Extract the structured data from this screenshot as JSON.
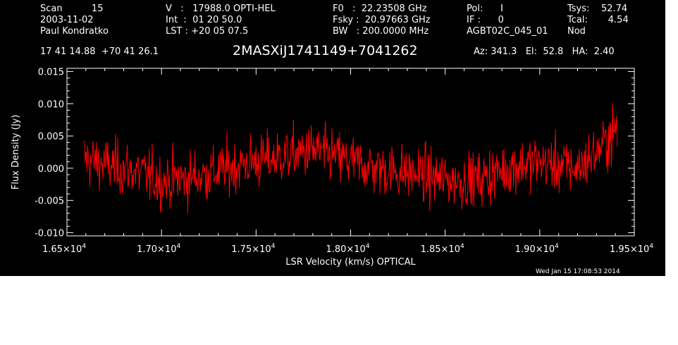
{
  "header": {
    "col1": [
      "Scan          15",
      "2003-11-02",
      "Paul Kondratko"
    ],
    "col2": [
      "V   :   17988.0 OPTI-HEL",
      "Int  :  01 20 50.0",
      "LST : +20 05 07.5"
    ],
    "col3": [
      "F0   :  22.23508 GHz",
      "Fsky :  20.97663 GHz",
      "BW   : 200.0000 MHz"
    ],
    "col4": [
      "Pol:      I",
      "IF :      0",
      "AGBT02C_045_01"
    ],
    "col5": [
      "Tsys:    52.74",
      "Tcal:       4.54",
      "Nod"
    ],
    "coords": "17 41 14.88  +70 41 26.1",
    "source": "2MASXiJ1741149+7041262",
    "azel": "Az: 341.3   El:  52.8   HA:  2.40",
    "timestamp": "Wed Jan 15 17:08:53 2014"
  },
  "colors": {
    "background": "#000000",
    "axes": "#ffffff",
    "trace": "#ff0000"
  },
  "chart_data": {
    "type": "line",
    "title": "2MASXiJ1741149+7041262",
    "xlabel": "LSR Velocity (km/s) OPTICAL",
    "ylabel": "Flux Density (Jy)",
    "xlim": [
      16500,
      19500
    ],
    "ylim": [
      -0.0105,
      0.0155
    ],
    "xticks": [
      16500,
      17000,
      17500,
      18000,
      18500,
      19000,
      19500
    ],
    "xtick_labels": [
      "1.65×10",
      "1.70×10",
      "1.75×10",
      "1.80×10",
      "1.85×10",
      "1.90×10",
      "1.95×10"
    ],
    "xtick_exponent": "4",
    "yticks": [
      -0.01,
      -0.005,
      0.0,
      0.005,
      0.01,
      0.015
    ],
    "ytick_labels": [
      "-0.010",
      "-0.005",
      "0.000",
      "0.005",
      "0.010",
      "0.015"
    ],
    "grid": false,
    "series": [
      {
        "x_range": [
          16590,
          19410
        ],
        "points": 900,
        "noise_sigma": 0.0028,
        "baseline": {
          "x": [
            16590,
            16700,
            16850,
            17000,
            17150,
            17300,
            17450,
            17600,
            17800,
            17950,
            18100,
            18250,
            18400,
            18550,
            18700,
            18850,
            19000,
            19100,
            19200,
            19300,
            19410
          ],
          "y": [
            0.0015,
            0.0005,
            -0.0003,
            -0.002,
            -0.0015,
            -0.0005,
            0.0008,
            0.0015,
            0.0028,
            0.0015,
            0.0002,
            -0.0005,
            -0.0012,
            -0.002,
            -0.0015,
            0.0002,
            0.001,
            0.0005,
            0.0,
            0.0025,
            0.006
          ]
        }
      }
    ]
  }
}
